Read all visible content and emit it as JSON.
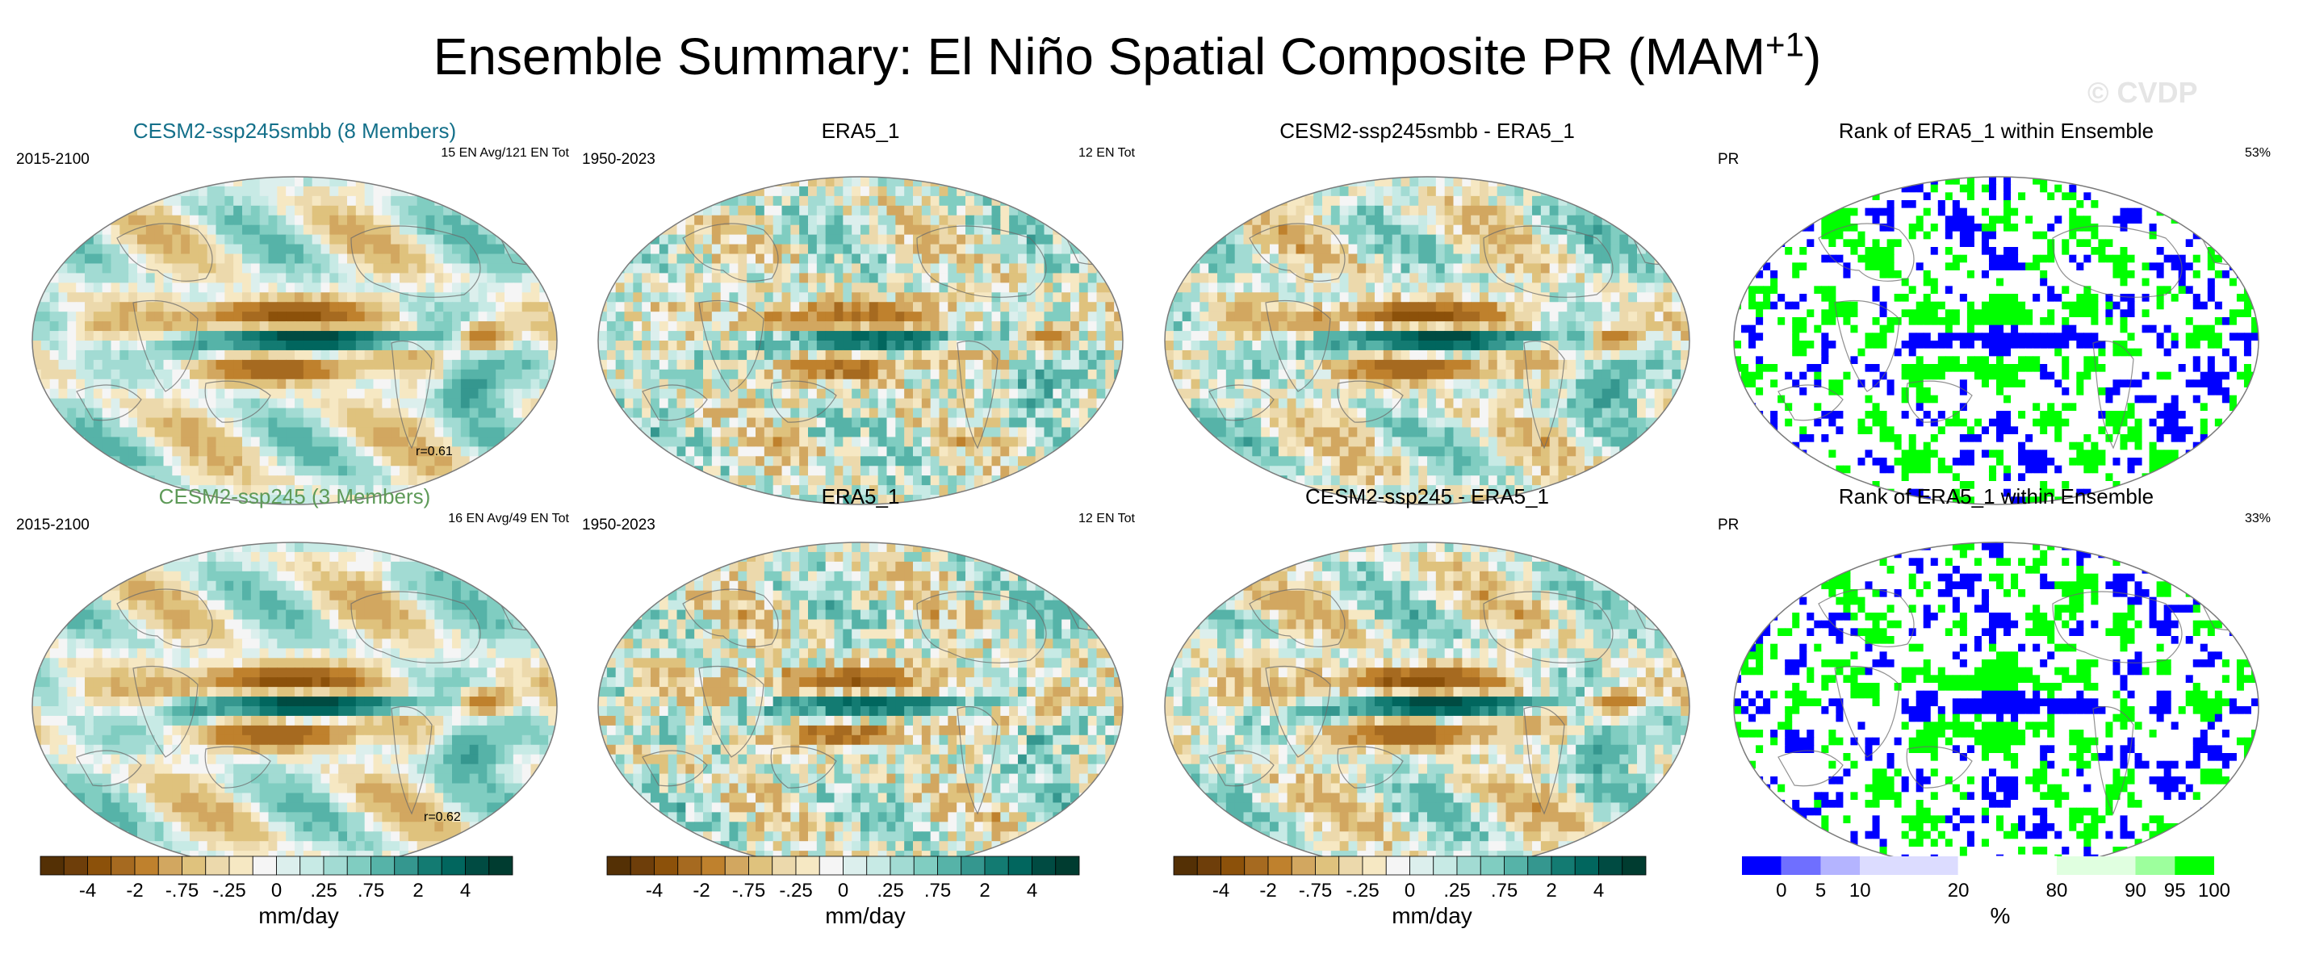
{
  "title": {
    "main": "Ensemble Summary: El Niño Spatial Composite PR (MAM",
    "superscript": "+1",
    "close": ")"
  },
  "watermark": "© CVDP",
  "rows": [
    {
      "ensemble_title": "CESM2-ssp245smbb (8 Members)",
      "ensemble_color": "#14708a",
      "ensemble_years": "2015-2100",
      "ensemble_events": "15 EN Avg/121 EN Tot",
      "ensemble_corr": "r=0.61",
      "obs_title": "ERA5_1",
      "obs_years": "1950-2023",
      "obs_events": "12 EN Tot",
      "diff_title": "CESM2-ssp245smbb - ERA5_1",
      "rank_title": "Rank of ERA5_1 within Ensemble",
      "rank_var": "PR",
      "rank_pct": "53%"
    },
    {
      "ensemble_title": "CESM2-ssp245 (3 Members)",
      "ensemble_color": "#5e9a58",
      "ensemble_years": "2015-2100",
      "ensemble_events": "16 EN Avg/49 EN Tot",
      "ensemble_corr": "r=0.62",
      "obs_title": "ERA5_1",
      "obs_years": "1950-2023",
      "obs_events": "12 EN Tot",
      "diff_title": "CESM2-ssp245 - ERA5_1",
      "rank_title": "Rank of ERA5_1 within Ensemble",
      "rank_var": "PR",
      "rank_pct": "33%"
    }
  ],
  "chart_data": {
    "type": "heatmap",
    "field": "PR El Niño composite (MAM+1)",
    "panels": [
      "ensemble mean",
      "observed",
      "difference",
      "rank"
    ],
    "brbg_colorbar": {
      "label": "mm/day",
      "tick_labels": [
        "-4",
        "-2",
        "-.75",
        "-.25",
        "0",
        ".25",
        ".75",
        "2",
        "4"
      ],
      "colors": [
        "#543005",
        "#6e3e0a",
        "#8c510a",
        "#a66a20",
        "#bf812d",
        "#d2a760",
        "#dfc27d",
        "#ecd9ac",
        "#f6e8c3",
        "#f5f5f5",
        "#dcefed",
        "#c7eae5",
        "#a2dbd3",
        "#80cdc1",
        "#56b3a8",
        "#35978f",
        "#137b72",
        "#01665e",
        "#004b42",
        "#003c30"
      ]
    },
    "rank_colorbar": {
      "label": "%",
      "tick_labels": [
        "0",
        "5",
        "10",
        "20",
        "80",
        "90",
        "95",
        "100"
      ],
      "colors": [
        "#0000ff",
        "#6f6fff",
        "#b4b4ff",
        "#dcdcff",
        "#ffffff",
        "#e0ffe0",
        "#9dff9d",
        "#00ff00"
      ]
    }
  }
}
